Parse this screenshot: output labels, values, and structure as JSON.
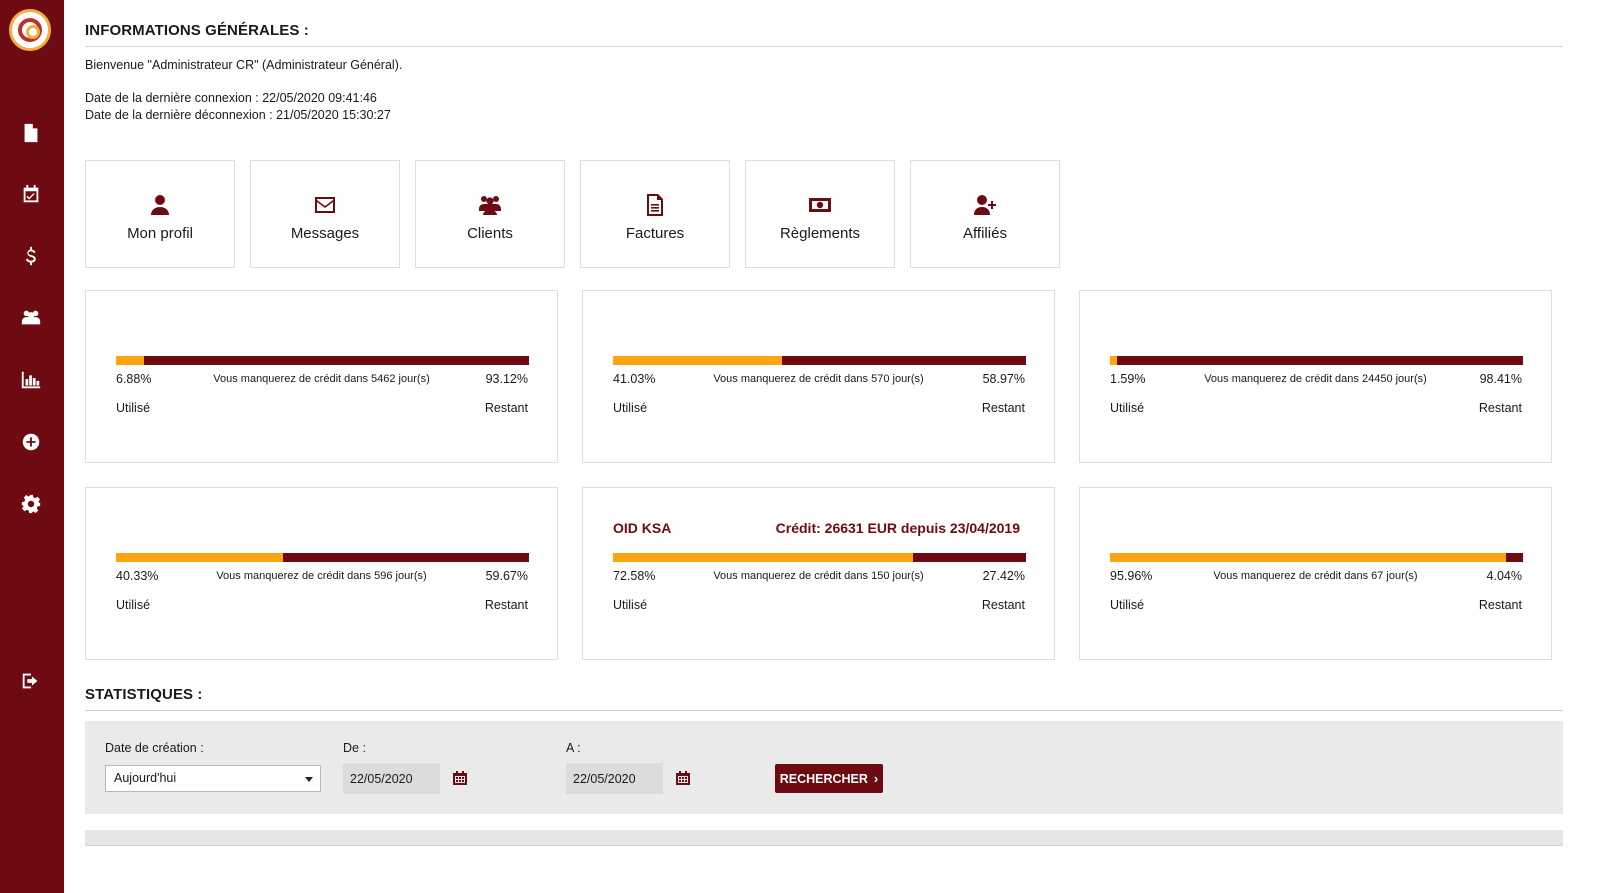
{
  "sidebar": {
    "icons": [
      "document-icon",
      "calendar-check-icon",
      "dollar-icon",
      "group-icon",
      "bar-chart-icon",
      "plus-circle-icon",
      "gear-icon",
      "sign-out-icon"
    ]
  },
  "info": {
    "title": "INFORMATIONS GÉNÉRALES :",
    "welcome": "Bienvenue \"Administrateur CR\" (Administrateur Général).",
    "last_login": "Date de la dernière connexion : 22/05/2020 09:41:46",
    "last_logout": "Date de la dernière déconnexion : 21/05/2020 15:30:27"
  },
  "tiles": [
    {
      "label": "Mon profil",
      "icon": "user-icon"
    },
    {
      "label": "Messages",
      "icon": "envelope-icon"
    },
    {
      "label": "Clients",
      "icon": "users-icon"
    },
    {
      "label": "Factures",
      "icon": "file-text-icon"
    },
    {
      "label": "Règlements",
      "icon": "money-icon"
    },
    {
      "label": "Affiliés",
      "icon": "user-plus-icon"
    }
  ],
  "credit_cards": [
    {
      "used_pct": "6.88%",
      "used": 0.0688,
      "remaining_pct": "93.12%",
      "message": "Vous manquerez de crédit dans 5462 jour(s)",
      "used_label": "Utilisé",
      "remaining_label": "Restant"
    },
    {
      "used_pct": "41.03%",
      "used": 0.4103,
      "remaining_pct": "58.97%",
      "message": "Vous manquerez de crédit dans 570 jour(s)",
      "used_label": "Utilisé",
      "remaining_label": "Restant"
    },
    {
      "used_pct": "1.59%",
      "used": 0.0159,
      "remaining_pct": "98.41%",
      "message": "Vous manquerez de crédit dans 24450 jour(s)",
      "used_label": "Utilisé",
      "remaining_label": "Restant"
    },
    {
      "used_pct": "40.33%",
      "used": 0.4033,
      "remaining_pct": "59.67%",
      "message": "Vous manquerez de crédit dans 596 jour(s)",
      "used_label": "Utilisé",
      "remaining_label": "Restant"
    },
    {
      "name": "OID KSA",
      "credit": "Crédit: 26631 EUR depuis 23/04/2019",
      "used_pct": "72.58%",
      "used": 0.7258,
      "remaining_pct": "27.42%",
      "message": "Vous manquerez de crédit dans 150 jour(s)",
      "used_label": "Utilisé",
      "remaining_label": "Restant"
    },
    {
      "used_pct": "95.96%",
      "used": 0.9596,
      "remaining_pct": "4.04%",
      "message": "Vous manquerez de crédit dans 67 jour(s)",
      "used_label": "Utilisé",
      "remaining_label": "Restant"
    }
  ],
  "stats": {
    "title": "STATISTIQUES :",
    "date_label": "Date de création :",
    "date_value": "Aujourd'hui",
    "from_label": "De :",
    "from_value": "22/05/2020",
    "to_label": "A :",
    "to_value": "22/05/2020",
    "search_label": "RECHERCHER"
  },
  "colors": {
    "brand": "#6e0b12",
    "accent": "#fca510"
  }
}
